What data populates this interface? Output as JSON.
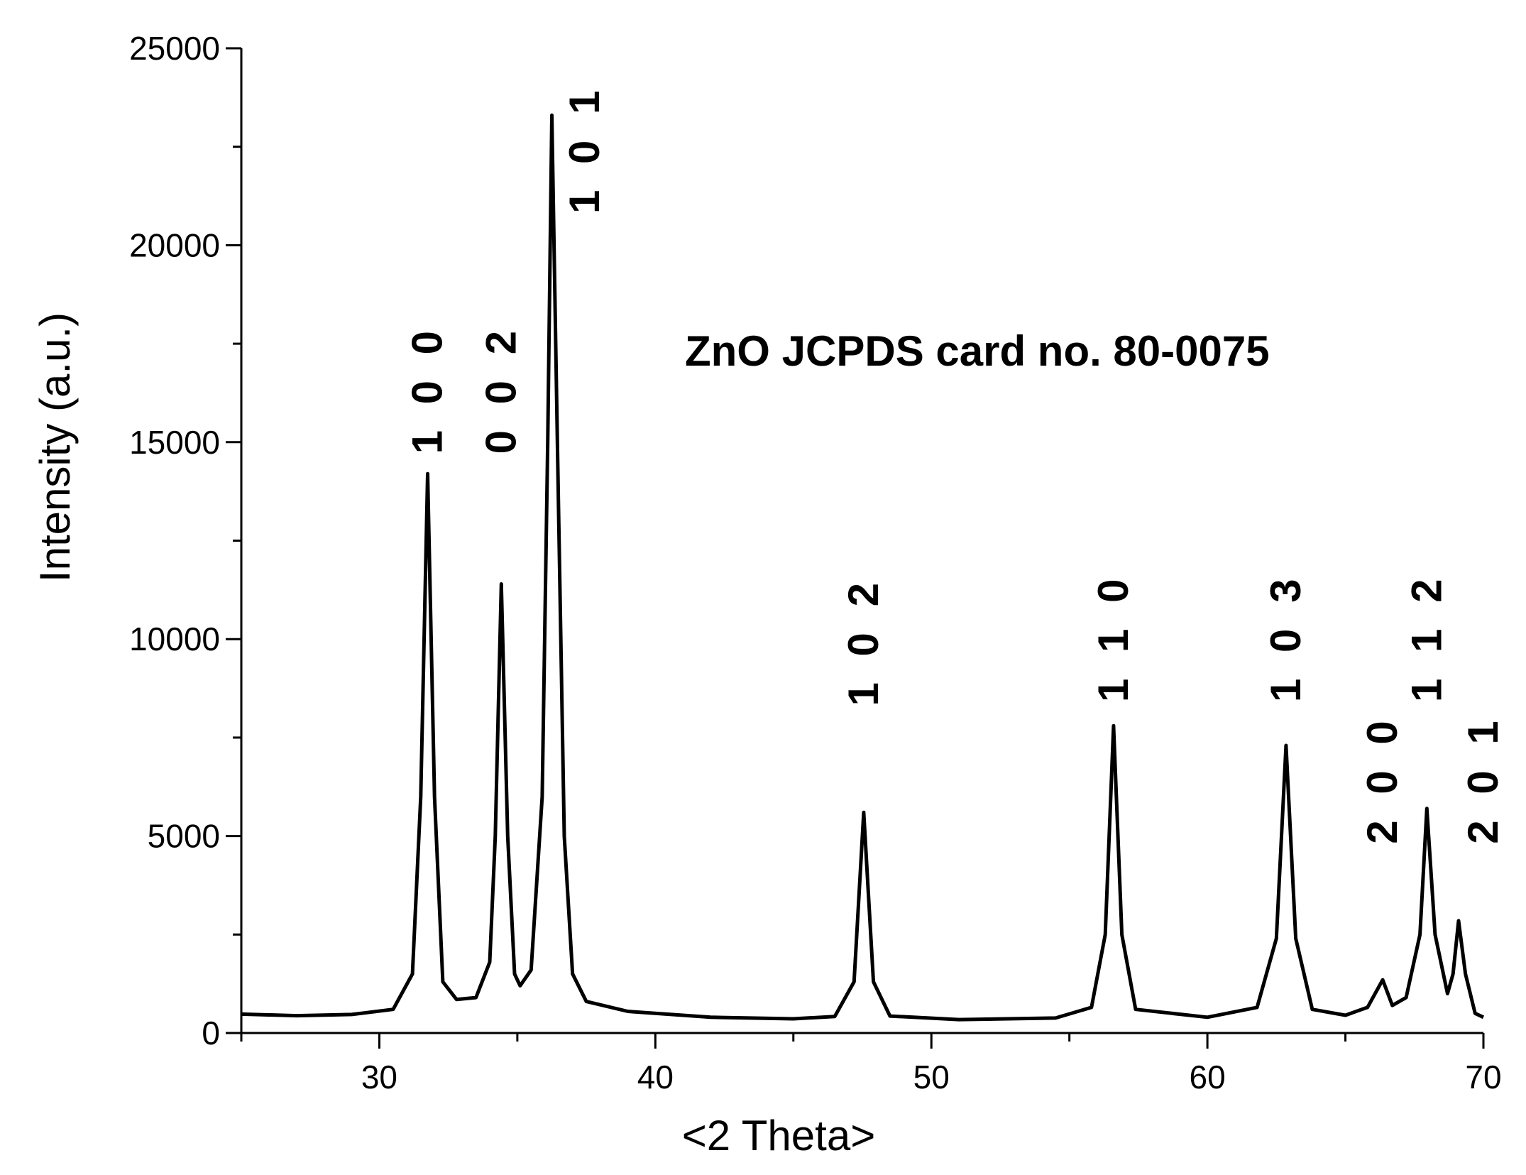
{
  "chart_data": {
    "type": "line",
    "title": "",
    "xlabel": "<2 Theta>",
    "ylabel": "Intensity (a.u.)",
    "xlim": [
      25,
      70
    ],
    "ylim": [
      0,
      25000
    ],
    "x_ticks": [
      30,
      40,
      50,
      60,
      70
    ],
    "x_tick_labels": [
      "30",
      "40",
      "50",
      "60",
      "70"
    ],
    "y_ticks": [
      0,
      5000,
      10000,
      15000,
      20000,
      25000
    ],
    "y_tick_labels": [
      "0",
      "5000",
      "10000",
      "15000",
      "20000",
      "25000"
    ],
    "grid": false,
    "annotation": "ZnO JCPDS card no. 80-0075",
    "series": [
      {
        "points": [
          [
            25.0,
            480
          ],
          [
            27.0,
            440
          ],
          [
            29.0,
            470
          ],
          [
            30.5,
            600
          ],
          [
            31.2,
            1500
          ],
          [
            31.5,
            6000
          ],
          [
            31.75,
            14200
          ],
          [
            32.0,
            6000
          ],
          [
            32.3,
            1300
          ],
          [
            32.8,
            850
          ],
          [
            33.5,
            900
          ],
          [
            34.0,
            1800
          ],
          [
            34.2,
            5000
          ],
          [
            34.42,
            11400
          ],
          [
            34.65,
            5000
          ],
          [
            34.9,
            1500
          ],
          [
            35.1,
            1200
          ],
          [
            35.5,
            1600
          ],
          [
            35.9,
            6000
          ],
          [
            36.1,
            15000
          ],
          [
            36.25,
            23300
          ],
          [
            36.45,
            15000
          ],
          [
            36.7,
            5000
          ],
          [
            37.0,
            1500
          ],
          [
            37.5,
            800
          ],
          [
            39.0,
            550
          ],
          [
            42.0,
            400
          ],
          [
            45.0,
            360
          ],
          [
            46.5,
            420
          ],
          [
            47.2,
            1300
          ],
          [
            47.55,
            5600
          ],
          [
            47.9,
            1300
          ],
          [
            48.5,
            430
          ],
          [
            51.0,
            340
          ],
          [
            54.5,
            380
          ],
          [
            55.8,
            650
          ],
          [
            56.3,
            2500
          ],
          [
            56.6,
            7800
          ],
          [
            56.9,
            2500
          ],
          [
            57.4,
            600
          ],
          [
            60.0,
            400
          ],
          [
            61.8,
            650
          ],
          [
            62.5,
            2400
          ],
          [
            62.85,
            7300
          ],
          [
            63.2,
            2400
          ],
          [
            63.8,
            600
          ],
          [
            65.0,
            450
          ],
          [
            65.8,
            650
          ],
          [
            66.35,
            1350
          ],
          [
            66.7,
            700
          ],
          [
            67.2,
            900
          ],
          [
            67.7,
            2500
          ],
          [
            67.95,
            5700
          ],
          [
            68.25,
            2500
          ],
          [
            68.7,
            1000
          ],
          [
            68.9,
            1500
          ],
          [
            69.1,
            2850
          ],
          [
            69.35,
            1500
          ],
          [
            69.7,
            500
          ],
          [
            70.0,
            400
          ]
        ]
      }
    ],
    "peak_labels": [
      {
        "label": "1 0 0",
        "x": 31.75,
        "y": 14700
      },
      {
        "label": "0 0 2",
        "x": 34.42,
        "y": 14700
      },
      {
        "label": "1 0 1",
        "x": 37.45,
        "y": 20800
      },
      {
        "label": "1 0 2",
        "x": 47.55,
        "y": 8300
      },
      {
        "label": "1 1 0",
        "x": 56.6,
        "y": 8400
      },
      {
        "label": "1 0 3",
        "x": 62.85,
        "y": 8400
      },
      {
        "label": "2 0 0",
        "x": 66.35,
        "y": 4800
      },
      {
        "label": "1 1 2",
        "x": 67.95,
        "y": 8400
      },
      {
        "label": "2 0 1",
        "x": 70.0,
        "y": 4800
      }
    ]
  }
}
